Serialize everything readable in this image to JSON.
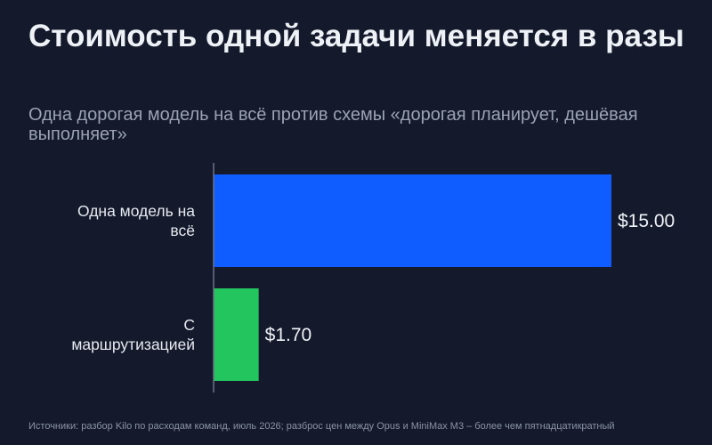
{
  "header": {
    "title": "Стоимость одной задачи меняется в разы",
    "subtitle": "Одна дорогая модель на всё против схемы «дорогая планирует, дешёвая выполняет»"
  },
  "chart_data": {
    "type": "bar",
    "orientation": "horizontal",
    "categories": [
      "Одна модель на всё",
      "С маршрутизацией"
    ],
    "values": [
      15.0,
      1.7
    ],
    "data_labels": [
      "$15.00",
      "$1.70"
    ],
    "value_prefix": "$",
    "colors": [
      "#0f5cff",
      "#22c55e"
    ],
    "xlim": [
      0,
      15
    ],
    "grid": false,
    "legend": "none"
  },
  "footer": {
    "source": "Источники: разбор Kilo по расходам команд, июль 2026; разброс цен между Opus и MiniMax M3 – более чем пятнадцатикратный"
  },
  "colors": {
    "background": "#141a2b",
    "title": "#eef1f6",
    "subtitle": "#9aa3b5",
    "axis": "#6b7386"
  }
}
